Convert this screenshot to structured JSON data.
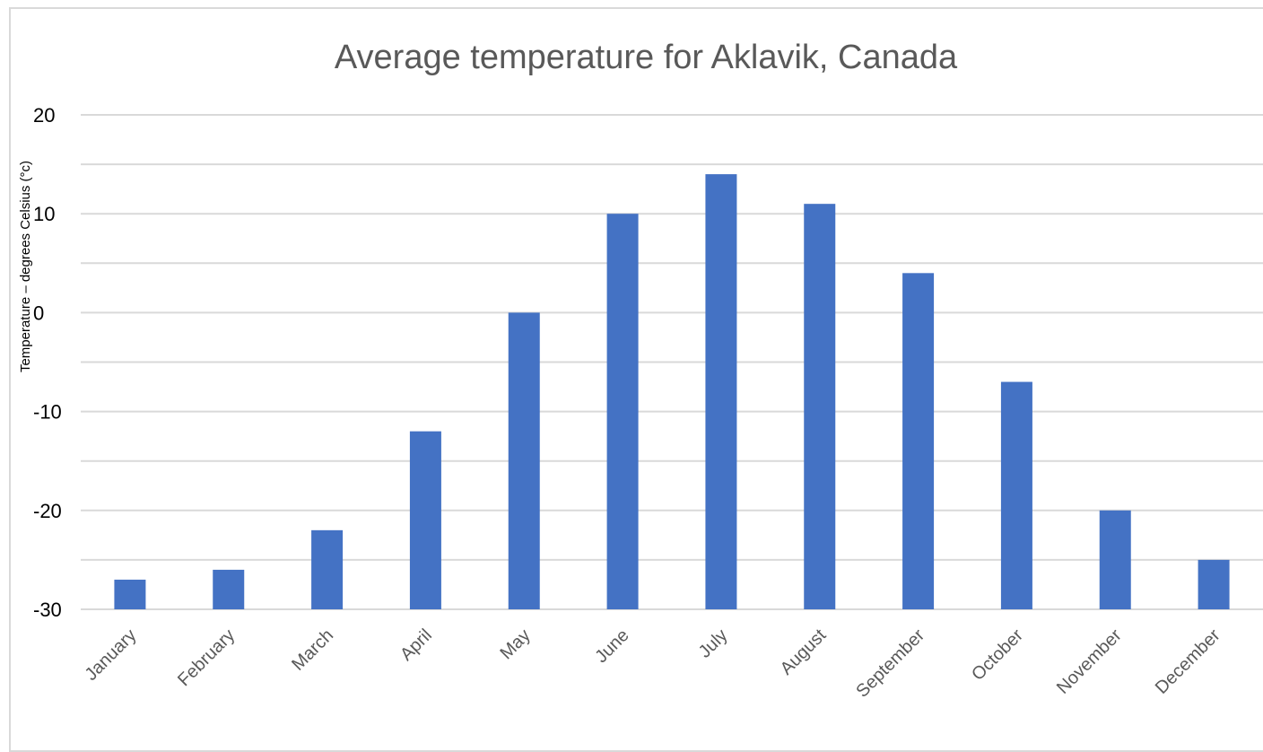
{
  "chart_data": {
    "type": "bar",
    "title": "Average temperature for Aklavik, Canada",
    "xlabel": "",
    "ylabel": "Temperature – degrees Celsius (°c)",
    "categories": [
      "January",
      "February",
      "March",
      "April",
      "May",
      "June",
      "July",
      "August",
      "September",
      "October",
      "November",
      "December"
    ],
    "series": [
      {
        "values": [
          -27,
          -26,
          -22,
          -12,
          0,
          10,
          14,
          11,
          4,
          -7,
          -20,
          -25
        ],
        "color": "#4472c4"
      }
    ],
    "ylim": [
      -30,
      20
    ],
    "yticks": [
      20,
      10,
      0,
      -10,
      -20,
      -30
    ],
    "grid": true,
    "gridline_color": "#d9d9d9",
    "legend": "none"
  }
}
